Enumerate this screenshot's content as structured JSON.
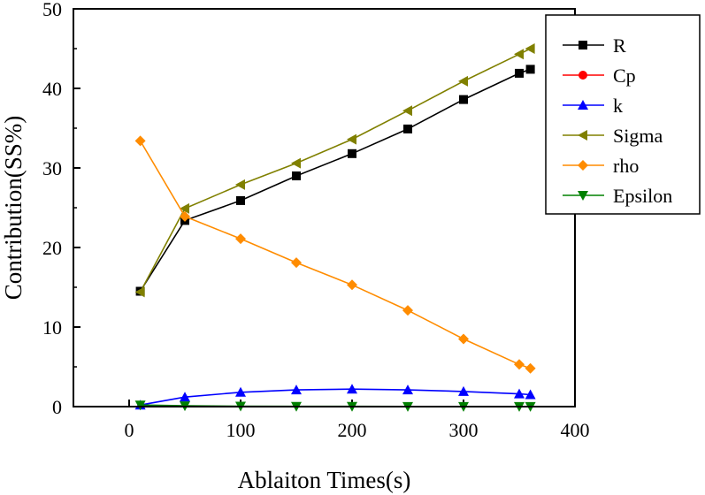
{
  "chart_data": {
    "type": "line",
    "title": "",
    "xlabel": "Ablaiton Times(s)",
    "ylabel": "Contribution(SS%)",
    "xlim": [
      -50,
      400
    ],
    "ylim": [
      0,
      50
    ],
    "xticks": [
      "0",
      "100",
      "200",
      "300",
      "400"
    ],
    "yticks": [
      "0",
      "10",
      "20",
      "30",
      "40",
      "50"
    ],
    "x": [
      10,
      50,
      100,
      150,
      200,
      250,
      300,
      350,
      360
    ],
    "legend_position": "top-right",
    "series": [
      {
        "name": "R",
        "color": "#000000",
        "marker": "square",
        "values": [
          14.5,
          23.4,
          25.9,
          29.0,
          31.8,
          34.9,
          38.6,
          41.9,
          42.4
        ]
      },
      {
        "name": "Cp",
        "color": "#ff0000",
        "marker": "circle",
        "values": [
          null,
          null,
          null,
          null,
          null,
          null,
          null,
          null,
          null
        ]
      },
      {
        "name": "k",
        "color": "#0000ff",
        "marker": "triangle-up",
        "values": [
          0.2,
          1.2,
          1.8,
          2.1,
          2.2,
          2.1,
          1.9,
          1.6,
          1.5
        ]
      },
      {
        "name": "Sigma",
        "color": "#808000",
        "marker": "triangle-left",
        "values": [
          14.4,
          24.9,
          27.9,
          30.6,
          33.6,
          37.2,
          40.9,
          44.3,
          45.0
        ]
      },
      {
        "name": "rho",
        "color": "#ff8c00",
        "marker": "diamond",
        "values": [
          33.4,
          23.9,
          21.1,
          18.1,
          15.3,
          12.1,
          8.5,
          5.3,
          4.8
        ]
      },
      {
        "name": "Epsilon",
        "color": "#008000",
        "marker": "triangle-down",
        "values": [
          0.2,
          0.1,
          0.05,
          0.03,
          0.03,
          0.02,
          0.02,
          0.02,
          0.02
        ]
      }
    ]
  }
}
